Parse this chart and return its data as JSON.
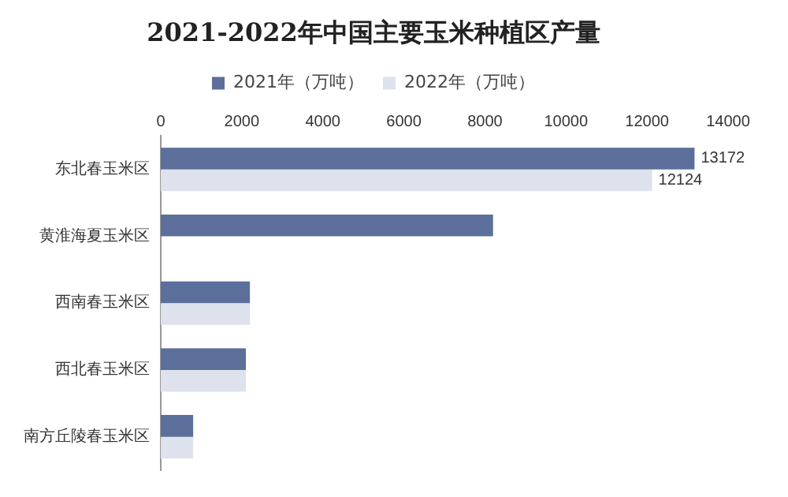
{
  "chart_data": {
    "type": "bar",
    "orientation": "horizontal",
    "title": "2021-2022年中国主要玉米种植区产量",
    "categories": [
      "东北春玉米区",
      "黄淮海夏玉米区",
      "西南春玉米区",
      "西北春玉米区",
      "南方丘陵春玉米区"
    ],
    "series": [
      {
        "name": "2021年（万吨）",
        "color": "#5b6f9a",
        "values": [
          13172,
          8200,
          2200,
          2100,
          800
        ],
        "value_labels": [
          "13172",
          null,
          null,
          null,
          null
        ]
      },
      {
        "name": "2022年（万吨）",
        "color": "#dde2ec",
        "values": [
          12124,
          null,
          2200,
          2100,
          800
        ],
        "value_labels": [
          "12124",
          null,
          null,
          null,
          null
        ]
      }
    ],
    "xlim": [
      0,
      14000
    ],
    "xticks": [
      0,
      2000,
      4000,
      6000,
      8000,
      10000,
      12000,
      14000
    ],
    "grid": false,
    "legend": "top"
  }
}
